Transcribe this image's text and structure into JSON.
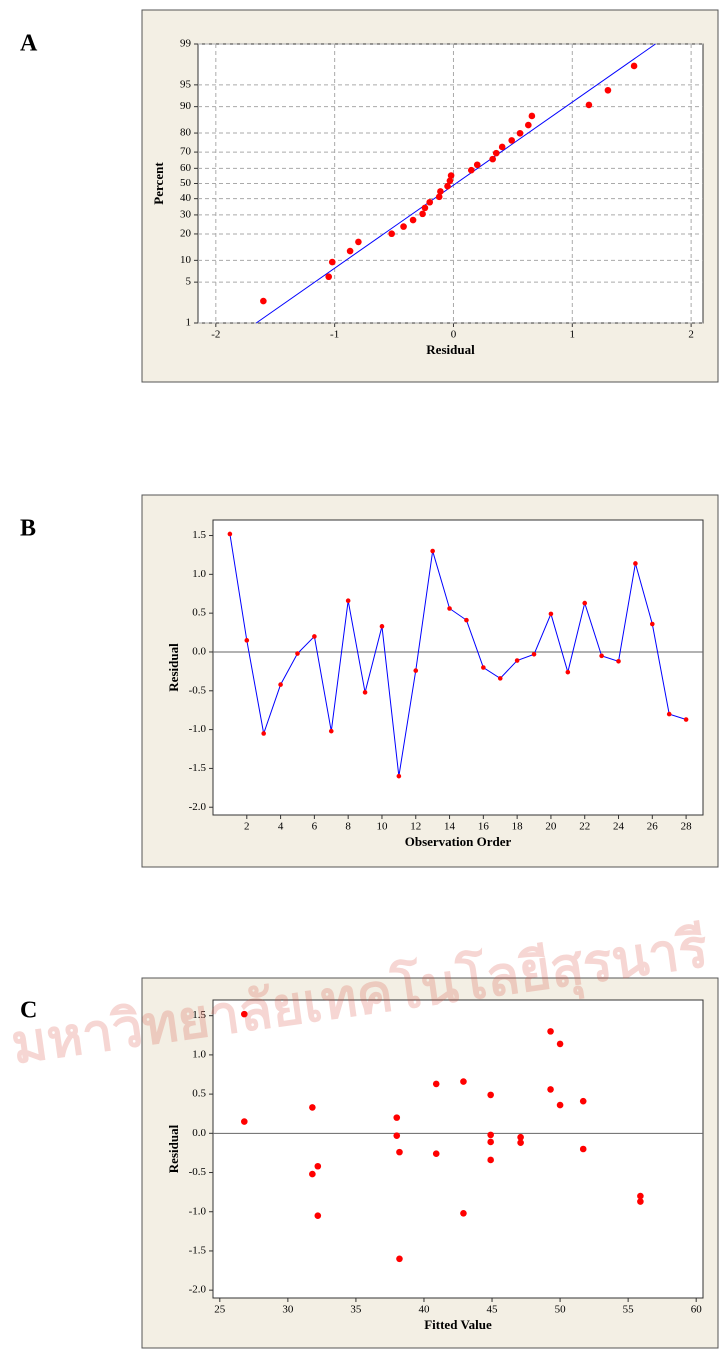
{
  "watermark": "มหาวิทยาลัยเทคโนโลยีสุรนารี",
  "chart_data": [
    {
      "type": "scatter",
      "panel_label": "A",
      "x_label": "Residual",
      "y_label": "Percent",
      "yscale": "probability",
      "grid": true,
      "color": "#ff0000",
      "x": [
        -1.6,
        -1.05,
        -1.02,
        -0.87,
        -0.8,
        -0.52,
        -0.42,
        -0.34,
        -0.26,
        -0.24,
        -0.2,
        -0.12,
        -0.11,
        -0.05,
        -0.03,
        -0.02,
        0.15,
        0.2,
        0.33,
        0.36,
        0.41,
        0.49,
        0.56,
        0.63,
        0.66,
        1.14,
        1.3,
        1.52
      ],
      "values": [
        2.5,
        6.0,
        9.5,
        13.0,
        16.5,
        20.1,
        23.6,
        27.1,
        30.6,
        34.2,
        37.7,
        41.2,
        44.7,
        48.2,
        51.8,
        55.3,
        58.8,
        62.3,
        65.8,
        69.4,
        72.9,
        76.4,
        79.9,
        83.5,
        87.0,
        90.5,
        94.0,
        97.5
      ],
      "fit_line": {
        "x": [
          -1.66,
          1.7
        ],
        "y": [
          1,
          99
        ],
        "color": "#0000ff"
      },
      "xlim": [
        -2.15,
        2.1
      ],
      "xticks": [
        -2,
        -1,
        0,
        1,
        2
      ],
      "ylim": [
        1,
        99
      ],
      "yticks": [
        1,
        5,
        10,
        20,
        30,
        40,
        50,
        60,
        70,
        80,
        90,
        95,
        99
      ]
    },
    {
      "type": "line",
      "panel_label": "B",
      "x_label": "Observation Order",
      "y_label": "Residual",
      "grid": false,
      "color": "#0000ff",
      "marker_color": "#ff0000",
      "hline": 0,
      "x": [
        1,
        2,
        3,
        4,
        5,
        6,
        7,
        8,
        9,
        10,
        11,
        12,
        13,
        14,
        15,
        16,
        17,
        18,
        19,
        20,
        21,
        22,
        23,
        24,
        25,
        26,
        27,
        28
      ],
      "values": [
        1.52,
        0.15,
        -1.05,
        -0.42,
        -0.02,
        0.2,
        -1.02,
        0.66,
        -0.52,
        0.33,
        -1.6,
        -0.24,
        1.3,
        0.56,
        0.41,
        -0.2,
        -0.34,
        -0.11,
        -0.03,
        0.49,
        -0.26,
        0.63,
        -0.05,
        -0.12,
        1.14,
        0.36,
        -0.8,
        -0.87
      ],
      "xlim": [
        0,
        29
      ],
      "xticks": [
        2,
        4,
        6,
        8,
        10,
        12,
        14,
        16,
        18,
        20,
        22,
        24,
        26,
        28
      ],
      "ylim": [
        -2.1,
        1.7
      ],
      "yticks": [
        {
          "value": -2,
          "label": "-2.0"
        },
        -1.5,
        {
          "value": -1,
          "label": "-1.0"
        },
        -0.5,
        {
          "value": 0,
          "label": "0.0"
        },
        0.5,
        {
          "value": 1,
          "label": "1.0"
        },
        1.5
      ]
    },
    {
      "type": "scatter",
      "panel_label": "C",
      "x_label": "Fitted Value",
      "y_label": "Residual",
      "grid": false,
      "color": "#ff0000",
      "hline": 0,
      "x": [
        26.8,
        26.8,
        31.8,
        31.8,
        32.2,
        32.2,
        38.0,
        38.0,
        38.2,
        38.2,
        40.9,
        40.9,
        42.9,
        42.9,
        44.9,
        44.9,
        44.9,
        44.9,
        47.1,
        47.1,
        49.3,
        49.3,
        50.0,
        50.0,
        51.7,
        51.7,
        55.9,
        55.9
      ],
      "values": [
        1.52,
        0.15,
        0.33,
        -0.52,
        -0.42,
        -1.05,
        0.2,
        -0.03,
        -0.24,
        -1.6,
        0.63,
        -0.26,
        0.66,
        -1.02,
        0.49,
        -0.02,
        -0.11,
        -0.34,
        -0.05,
        -0.12,
        1.3,
        0.56,
        1.14,
        0.36,
        0.41,
        -0.2,
        -0.8,
        -0.87
      ],
      "xlim": [
        24.5,
        60.5
      ],
      "xticks": [
        25,
        30,
        35,
        40,
        45,
        50,
        55,
        60
      ],
      "ylim": [
        -2.1,
        1.7
      ],
      "yticks": [
        {
          "value": -2,
          "label": "-2.0"
        },
        -1.5,
        {
          "value": -1,
          "label": "-1.0"
        },
        -0.5,
        {
          "value": 0,
          "label": "0.0"
        },
        0.5,
        {
          "value": 1,
          "label": "1.0"
        },
        1.5
      ]
    }
  ]
}
